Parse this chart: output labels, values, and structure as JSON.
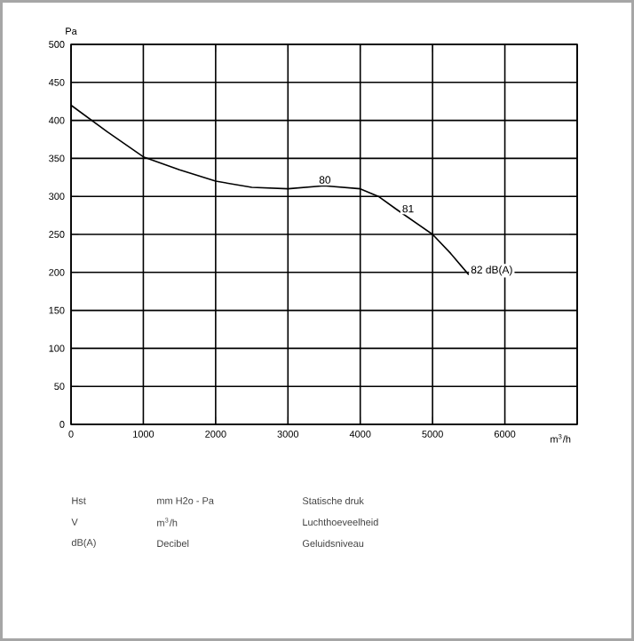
{
  "chart_data": {
    "type": "line",
    "xlabel": "m$^{3}$/h",
    "ylabel": "Pa",
    "x": [
      0,
      500,
      1000,
      1500,
      2000,
      2500,
      3000,
      3500,
      4000,
      4250,
      4500,
      5000,
      5250,
      5500
    ],
    "values": [
      420,
      385,
      352,
      335,
      320,
      312,
      310,
      314,
      310,
      300,
      283,
      250,
      225,
      197
    ],
    "color": "#000000",
    "xlim": [
      0,
      7000
    ],
    "xticks": [
      0,
      1000,
      2000,
      3000,
      4000,
      5000,
      6000,
      {
        "value": 7000,
        "label": null
      }
    ],
    "ylim": [
      0,
      500
    ],
    "yticks": [
      0,
      50,
      100,
      150,
      200,
      250,
      300,
      350,
      400,
      450,
      500
    ],
    "grid": true,
    "annotations": [
      {
        "text": "80",
        "x": 3400,
        "y": 314
      },
      {
        "text": "81",
        "x": 4550,
        "y": 276
      },
      {
        "text": "82 dB(A)",
        "x": 5500,
        "y": 193
      },
      "Hst",
      "mm H2o - Pa",
      "Statische druk",
      "V",
      "m$^{3}$/h",
      "Luchthoeveelheid",
      "dB(A)",
      "Decibel",
      "Geluidsniveau"
    ]
  }
}
